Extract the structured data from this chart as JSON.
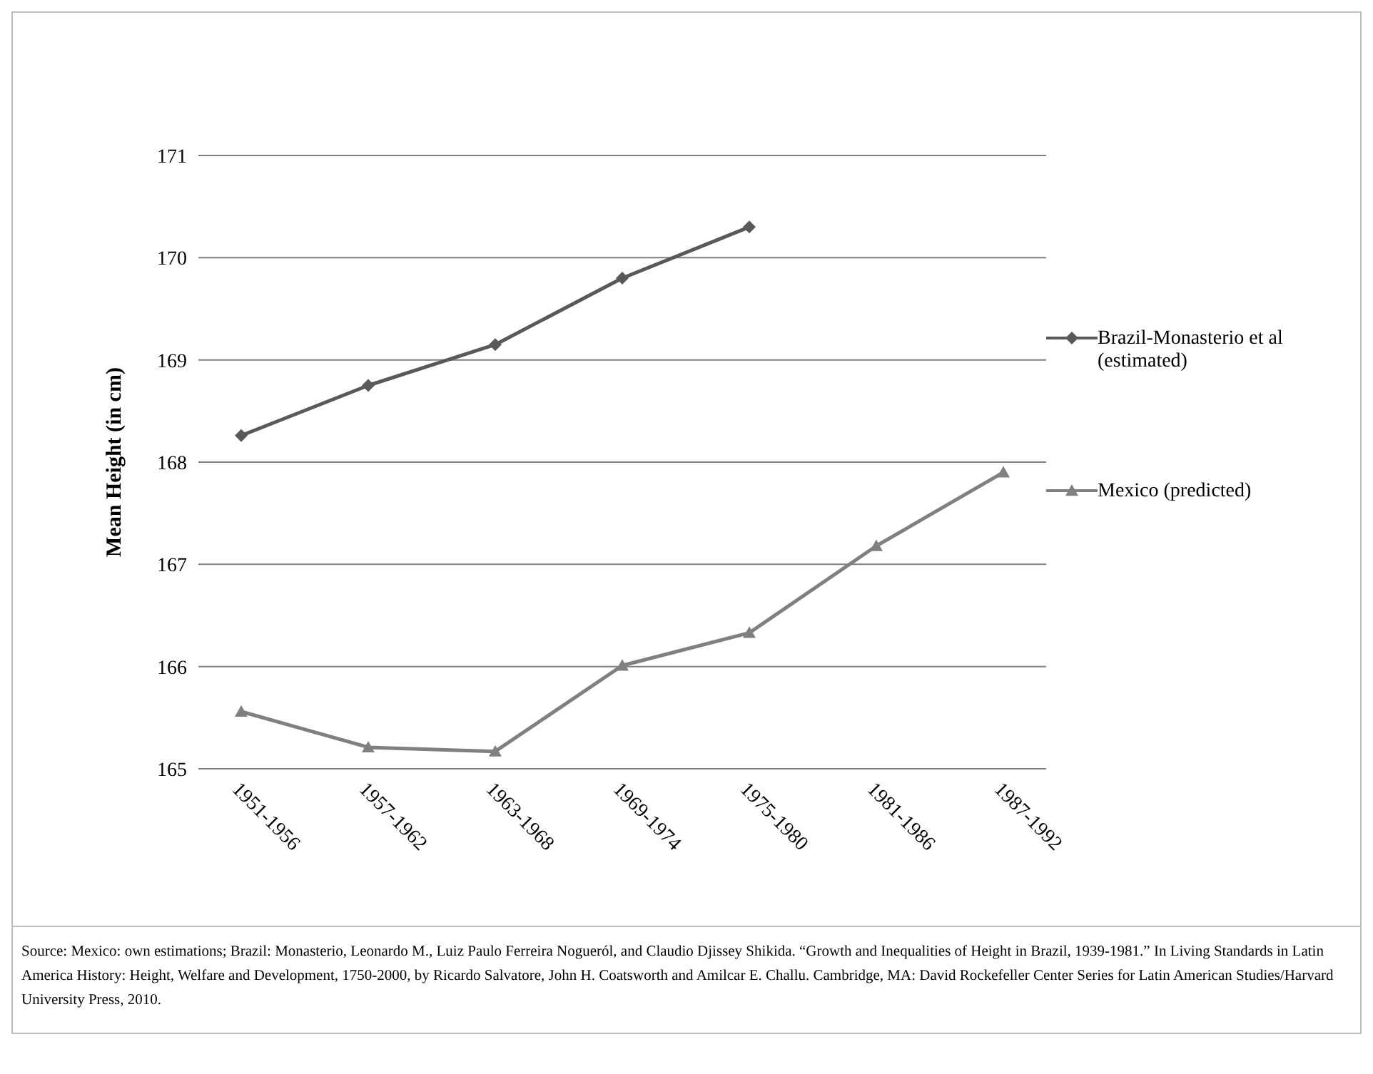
{
  "chart_data": {
    "type": "line",
    "ylabel": "Mean Height (in cm)",
    "categories": [
      "1951-1956",
      "1957-1962",
      "1963-1968",
      "1969-1974",
      "1975-1980",
      "1981-1986",
      "1987-1992"
    ],
    "series": [
      {
        "name": "Brazil-Monasterio et al (estimated)",
        "color": "#595959",
        "marker": "diamond",
        "values": [
          168.26,
          168.75,
          169.15,
          169.8,
          170.3,
          null,
          null
        ]
      },
      {
        "name": "Mexico (predicted)",
        "color": "#808080",
        "marker": "triangle",
        "values": [
          165.56,
          165.21,
          165.17,
          166.01,
          166.33,
          167.18,
          167.9
        ]
      }
    ],
    "ylim": [
      165,
      171
    ],
    "yticks": [
      165,
      166,
      167,
      168,
      169,
      170,
      171
    ],
    "grid": "y",
    "legend": "right",
    "annotations": [
      "Source: Mexico: own estimations; Brazil: Monasterio, Leonardo M., Luiz Paulo Ferreira Nogueról, and Claudio Djissey Shikida. “Growth and Inequalities of Height in Brazil, 1939-1981.” In Living Standards in Latin America History: Height, Welfare and Development, 1750-2000, by Ricardo Salvatore, John H. Coatsworth and Amilcar E. Challu. Cambridge, MA: David Rockefeller Center Series for Latin American Studies/Harvard University Press, 2010."
    ]
  }
}
